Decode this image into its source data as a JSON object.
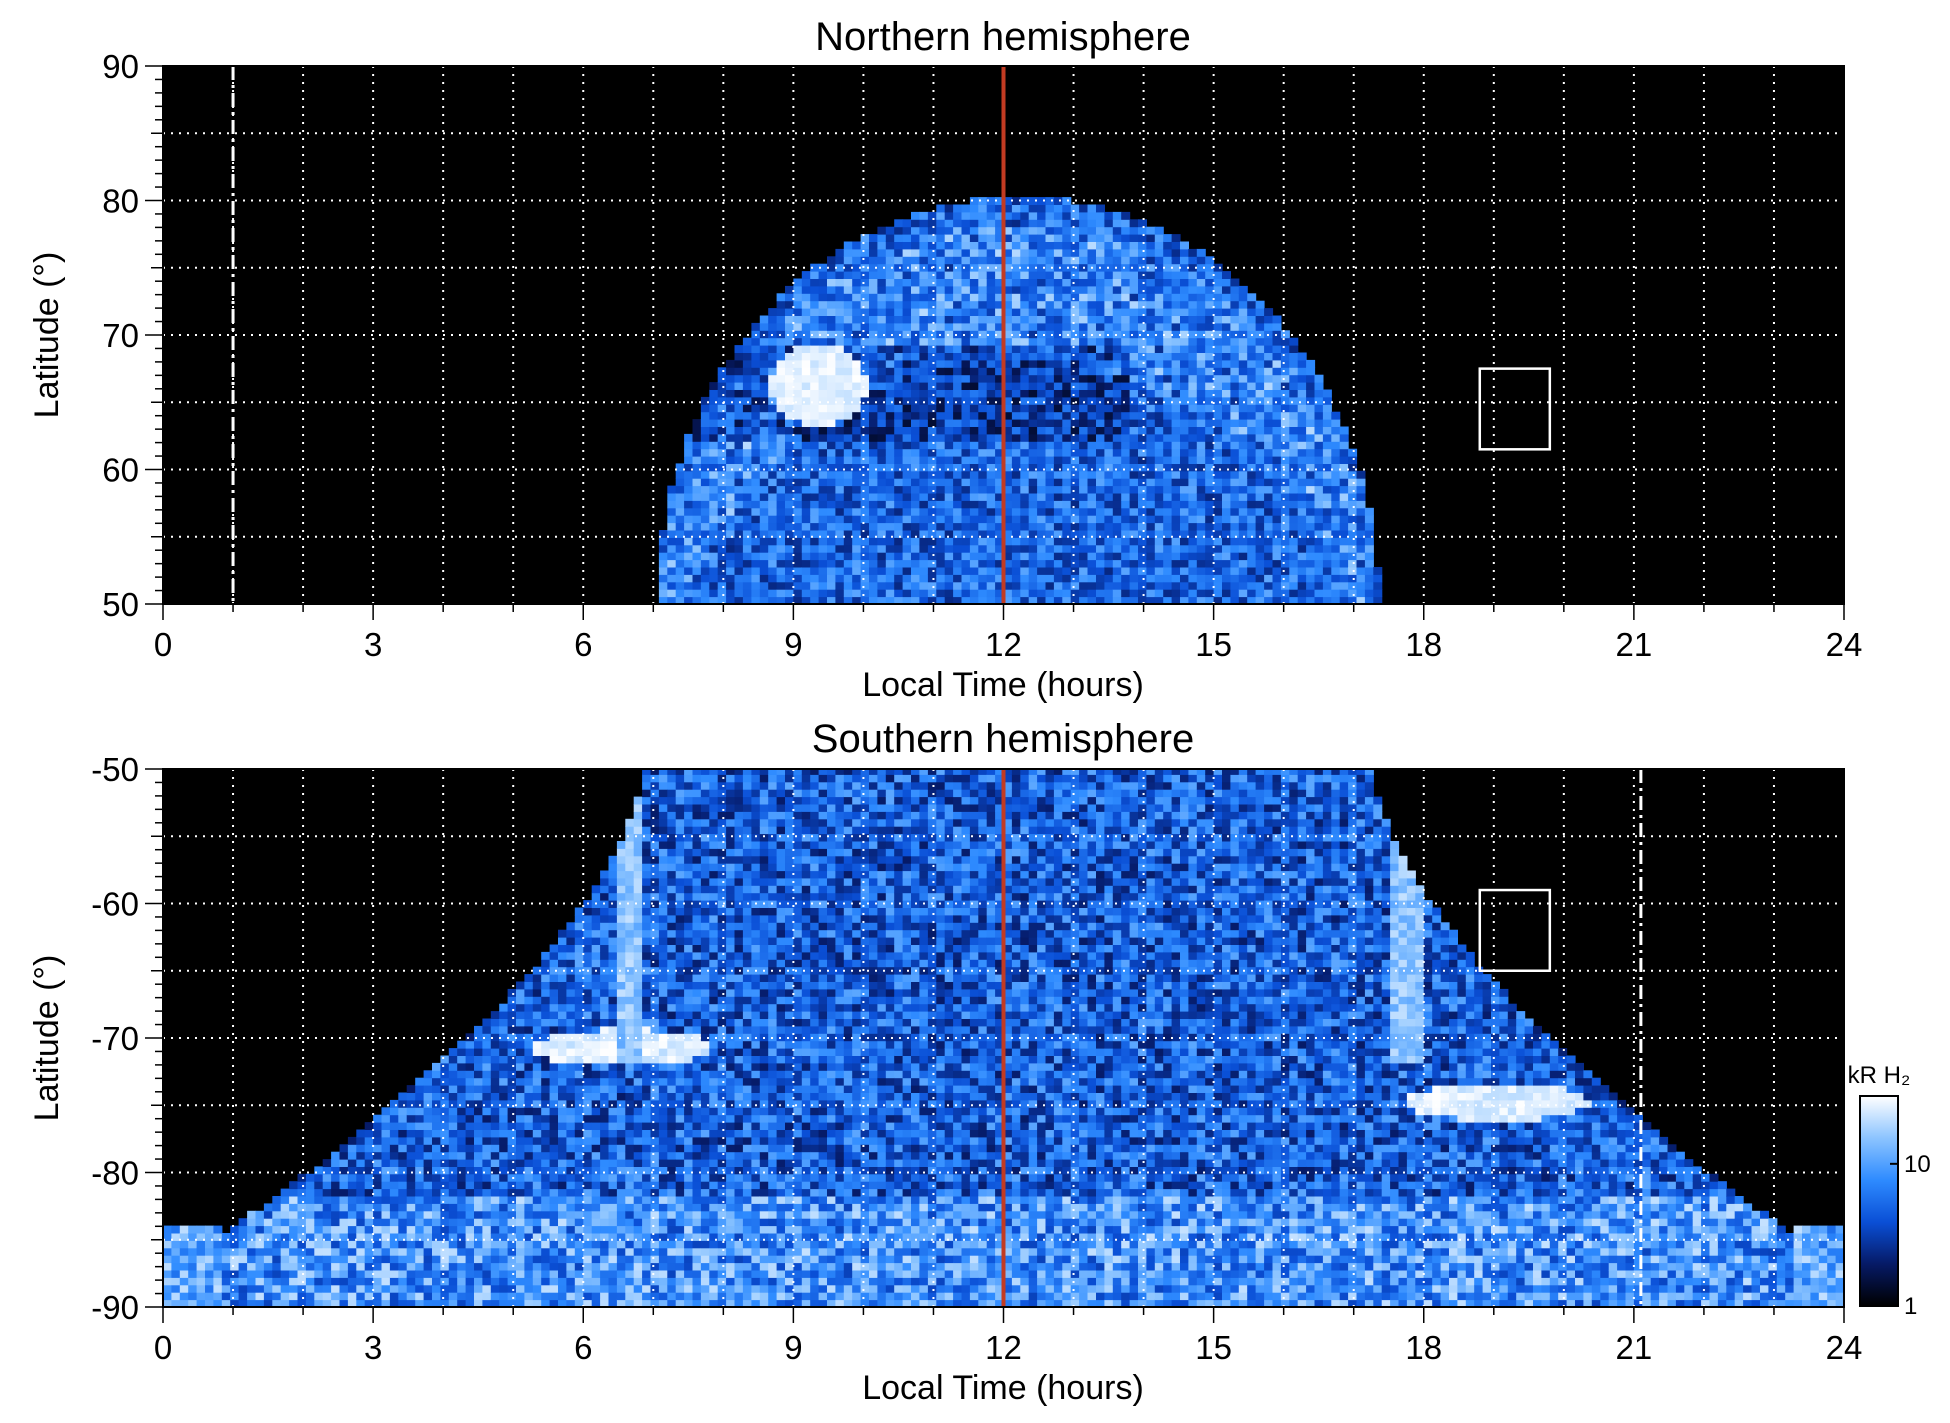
{
  "chart_data": [
    {
      "type": "heatmap",
      "title": "Northern hemisphere",
      "xlabel": "Local Time (hours)",
      "ylabel": "Latitude (°)",
      "xlim": [
        0,
        24
      ],
      "ylim": [
        50,
        90
      ],
      "x_ticks": [
        "0",
        "3",
        "6",
        "9",
        "12",
        "15",
        "18",
        "21",
        "24"
      ],
      "y_ticks": [
        "50",
        "60",
        "70",
        "80",
        "90"
      ],
      "grid": true,
      "background_color": "#000000",
      "noon_line": {
        "x": 12,
        "color": "#c23b22"
      },
      "dashed_line": {
        "x": 1.0
      },
      "box": {
        "x": [
          18.8,
          19.8
        ],
        "y": [
          61.5,
          67.5
        ]
      },
      "emission_region": {
        "lt_start": 7.0,
        "lt_end": 17.3,
        "max_latitude": 80
      },
      "bright_spot": {
        "lt": 9.3,
        "latitude": 66
      }
    },
    {
      "type": "heatmap",
      "title": "Southern hemisphere",
      "xlabel": "Local Time (hours)",
      "ylabel": "Latitude (°)",
      "xlim": [
        0,
        24
      ],
      "ylim": [
        -90,
        -50
      ],
      "x_ticks": [
        "0",
        "3",
        "6",
        "9",
        "12",
        "15",
        "18",
        "21",
        "24"
      ],
      "y_ticks": [
        "-90",
        "-80",
        "-70",
        "-60",
        "-50"
      ],
      "grid": true,
      "background_color": "#000000",
      "noon_line": {
        "x": 12,
        "color": "#c23b22"
      },
      "dashed_line": {
        "x": 21.1
      },
      "box": {
        "x": [
          18.8,
          19.8
        ],
        "y": [
          -65,
          -59
        ]
      },
      "bright_spots": [
        {
          "lt": 6.5,
          "latitude": -71
        },
        {
          "lt": 19.0,
          "latitude": -75
        }
      ],
      "colorbar": {
        "label": "kR H₂",
        "scale": "log",
        "range": [
          1,
          30
        ],
        "ticks": [
          "1",
          "10"
        ],
        "colors": [
          "#000000",
          "#061a66",
          "#0a4fd6",
          "#2e8bff",
          "#8cc4ff",
          "#ffffff"
        ]
      }
    }
  ]
}
